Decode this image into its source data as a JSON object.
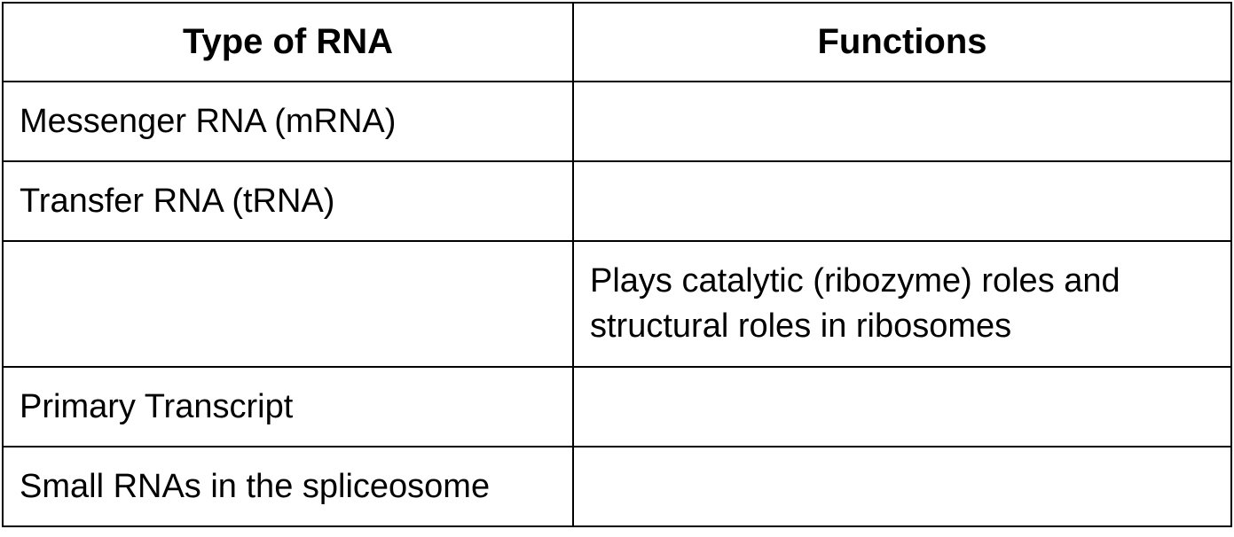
{
  "table": {
    "headers": [
      "Type of RNA",
      "Functions"
    ],
    "rows": [
      {
        "type": "Messenger RNA (mRNA)",
        "function": ""
      },
      {
        "type": "Transfer RNA (tRNA)",
        "function": ""
      },
      {
        "type": "",
        "function": "Plays catalytic (ribozyme) roles and structural roles in ribosomes"
      },
      {
        "type": "Primary Transcript",
        "function": ""
      },
      {
        "type": "Small RNAs in the spliceosome",
        "function": ""
      }
    ]
  }
}
